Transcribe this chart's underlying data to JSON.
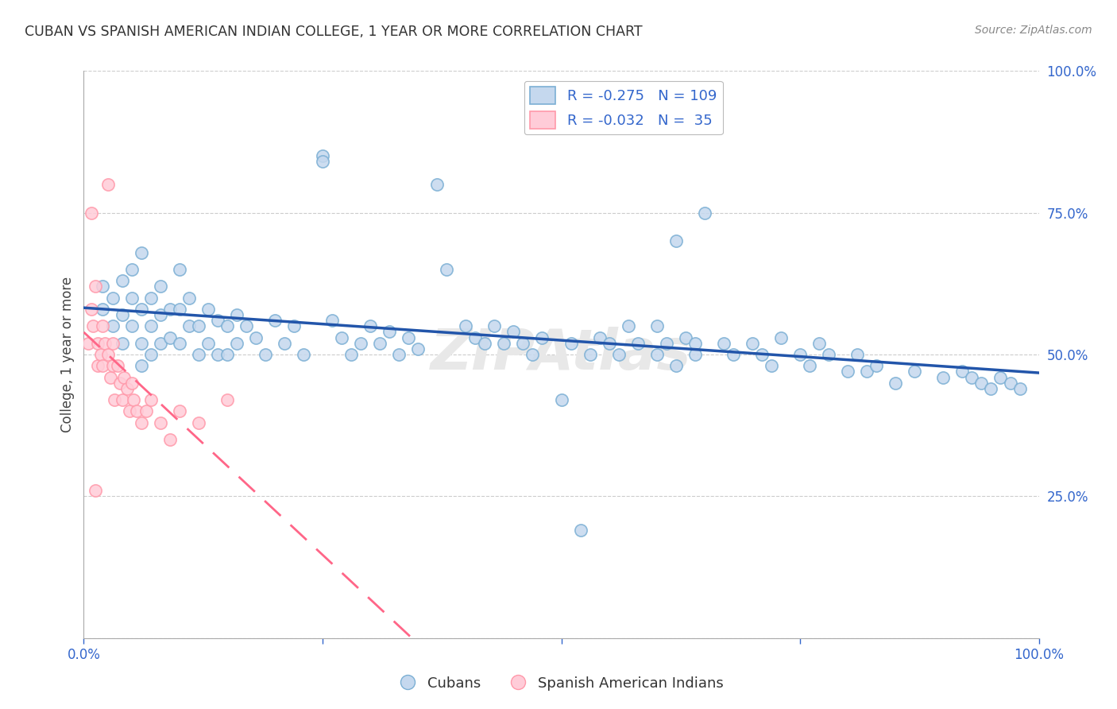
{
  "title": "CUBAN VS SPANISH AMERICAN INDIAN COLLEGE, 1 YEAR OR MORE CORRELATION CHART",
  "source": "Source: ZipAtlas.com",
  "ylabel": "College, 1 year or more",
  "right_ytick_labels": [
    "100.0%",
    "75.0%",
    "50.0%",
    "25.0%"
  ],
  "right_ytick_vals": [
    1.0,
    0.75,
    0.5,
    0.25
  ],
  "xtick_labels": [
    "0.0%",
    "",
    "",
    "",
    "100.0%"
  ],
  "xtick_vals": [
    0.0,
    0.25,
    0.5,
    0.75,
    1.0
  ],
  "blue_face": "#C5D8EE",
  "blue_edge": "#7BAFD4",
  "blue_line": "#2255AA",
  "pink_face": "#FFCCD8",
  "pink_edge": "#FF99AA",
  "pink_line": "#FF6688",
  "axis_label_color": "#3366CC",
  "title_color": "#333333",
  "source_color": "#888888",
  "grid_color": "#CCCCCC",
  "watermark_color": "#E8E8E8",
  "legend_label_blue": "R = -0.275   N = 109",
  "legend_label_pink": "R = -0.032   N =  35",
  "bottom_legend_blue": "Cubans",
  "bottom_legend_pink": "Spanish American Indians",
  "cubans_x": [
    0.02,
    0.02,
    0.03,
    0.03,
    0.04,
    0.04,
    0.04,
    0.05,
    0.05,
    0.05,
    0.06,
    0.06,
    0.06,
    0.06,
    0.07,
    0.07,
    0.07,
    0.08,
    0.08,
    0.08,
    0.09,
    0.09,
    0.1,
    0.1,
    0.1,
    0.11,
    0.11,
    0.12,
    0.12,
    0.13,
    0.13,
    0.14,
    0.14,
    0.15,
    0.15,
    0.16,
    0.16,
    0.17,
    0.18,
    0.19,
    0.2,
    0.21,
    0.22,
    0.23,
    0.25,
    0.25,
    0.26,
    0.27,
    0.28,
    0.29,
    0.3,
    0.31,
    0.32,
    0.33,
    0.34,
    0.35,
    0.37,
    0.38,
    0.4,
    0.41,
    0.42,
    0.43,
    0.44,
    0.45,
    0.46,
    0.47,
    0.48,
    0.5,
    0.51,
    0.52,
    0.53,
    0.54,
    0.55,
    0.56,
    0.57,
    0.58,
    0.6,
    0.61,
    0.62,
    0.63,
    0.64,
    0.65,
    0.67,
    0.68,
    0.7,
    0.71,
    0.72,
    0.73,
    0.75,
    0.76,
    0.77,
    0.78,
    0.8,
    0.81,
    0.82,
    0.83,
    0.85,
    0.87,
    0.9,
    0.92,
    0.93,
    0.94,
    0.95,
    0.96,
    0.97,
    0.98,
    0.6,
    0.62,
    0.64
  ],
  "cubans_y": [
    0.62,
    0.58,
    0.6,
    0.55,
    0.63,
    0.57,
    0.52,
    0.65,
    0.6,
    0.55,
    0.68,
    0.58,
    0.52,
    0.48,
    0.6,
    0.55,
    0.5,
    0.62,
    0.57,
    0.52,
    0.58,
    0.53,
    0.65,
    0.58,
    0.52,
    0.6,
    0.55,
    0.55,
    0.5,
    0.58,
    0.52,
    0.56,
    0.5,
    0.55,
    0.5,
    0.57,
    0.52,
    0.55,
    0.53,
    0.5,
    0.56,
    0.52,
    0.55,
    0.5,
    0.85,
    0.84,
    0.56,
    0.53,
    0.5,
    0.52,
    0.55,
    0.52,
    0.54,
    0.5,
    0.53,
    0.51,
    0.8,
    0.65,
    0.55,
    0.53,
    0.52,
    0.55,
    0.52,
    0.54,
    0.52,
    0.5,
    0.53,
    0.42,
    0.52,
    0.19,
    0.5,
    0.53,
    0.52,
    0.5,
    0.55,
    0.52,
    0.55,
    0.52,
    0.7,
    0.53,
    0.52,
    0.75,
    0.52,
    0.5,
    0.52,
    0.5,
    0.48,
    0.53,
    0.5,
    0.48,
    0.52,
    0.5,
    0.47,
    0.5,
    0.47,
    0.48,
    0.45,
    0.47,
    0.46,
    0.47,
    0.46,
    0.45,
    0.44,
    0.46,
    0.45,
    0.44,
    0.5,
    0.48,
    0.5
  ],
  "spanish_x": [
    0.005,
    0.008,
    0.01,
    0.012,
    0.015,
    0.015,
    0.018,
    0.02,
    0.02,
    0.022,
    0.025,
    0.025,
    0.028,
    0.03,
    0.03,
    0.032,
    0.035,
    0.038,
    0.04,
    0.042,
    0.045,
    0.048,
    0.05,
    0.052,
    0.055,
    0.06,
    0.065,
    0.07,
    0.08,
    0.09,
    0.1,
    0.12,
    0.15,
    0.008,
    0.012
  ],
  "spanish_y": [
    0.52,
    0.58,
    0.55,
    0.62,
    0.48,
    0.52,
    0.5,
    0.55,
    0.48,
    0.52,
    0.8,
    0.5,
    0.46,
    0.52,
    0.48,
    0.42,
    0.48,
    0.45,
    0.42,
    0.46,
    0.44,
    0.4,
    0.45,
    0.42,
    0.4,
    0.38,
    0.4,
    0.42,
    0.38,
    0.35,
    0.4,
    0.38,
    0.42,
    0.75,
    0.26
  ]
}
